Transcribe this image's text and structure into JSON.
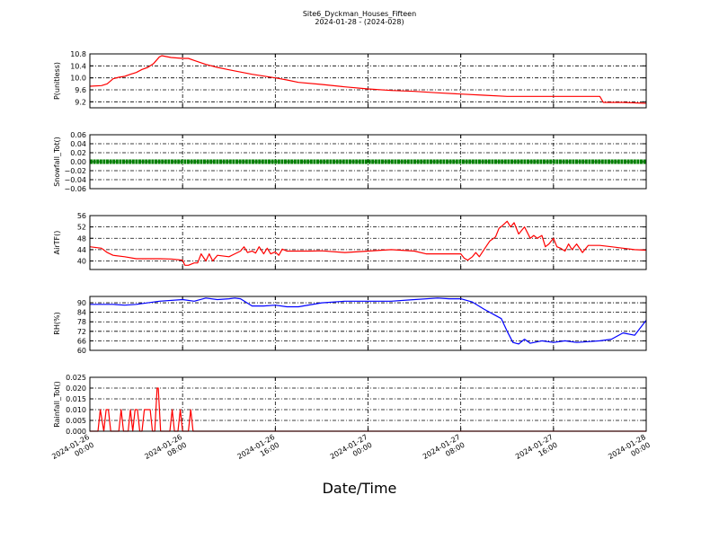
{
  "title": "Site6_Dyckman_Houses_Fifteen",
  "subtitle": "2024-01-28 - (2024-028)",
  "xlabel": "Date/Time",
  "chart_data": {
    "type": "line",
    "x_unit": "hours from 2024-01-26 00:00",
    "xlim": [
      0,
      48
    ],
    "xticks": [
      {
        "x": 0,
        "line1": "2024-01-26",
        "line2": "00:00"
      },
      {
        "x": 8,
        "line1": "2024-01-26",
        "line2": "08:00"
      },
      {
        "x": 16,
        "line1": "2024-01-26",
        "line2": "16:00"
      },
      {
        "x": 24,
        "line1": "2024-01-27",
        "line2": "00:00"
      },
      {
        "x": 32,
        "line1": "2024-01-27",
        "line2": "08:00"
      },
      {
        "x": 40,
        "line1": "2024-01-27",
        "line2": "16:00"
      },
      {
        "x": 48,
        "line1": "2024-01-28",
        "line2": "00:00"
      }
    ],
    "grid": true,
    "panels": [
      {
        "ylabel": "P(unitless)",
        "ylim": [
          9.0,
          10.8
        ],
        "yticks": [
          "9.2",
          "9.6",
          "10.0",
          "10.4",
          "10.8"
        ],
        "ytick_values": [
          9.2,
          9.6,
          10.0,
          10.4,
          10.8
        ],
        "color": "#ff0000",
        "style": "line",
        "x": [
          0,
          1,
          1.5,
          2,
          2.5,
          3,
          3.5,
          4,
          4.5,
          5,
          5.5,
          6,
          6.2,
          7,
          8,
          8.5,
          9,
          10,
          11,
          12,
          14,
          16,
          17,
          18,
          20,
          22,
          24,
          26,
          28,
          30,
          32,
          34,
          36,
          38,
          40,
          44,
          44.3,
          46,
          48
        ],
        "y": [
          9.72,
          9.74,
          9.8,
          9.97,
          10.02,
          10.05,
          10.12,
          10.18,
          10.28,
          10.35,
          10.48,
          10.7,
          10.74,
          10.68,
          10.65,
          10.65,
          10.58,
          10.45,
          10.35,
          10.27,
          10.12,
          10.0,
          9.93,
          9.85,
          9.78,
          9.7,
          9.63,
          9.58,
          9.55,
          9.5,
          9.46,
          9.42,
          9.38,
          9.38,
          9.38,
          9.38,
          9.18,
          9.18,
          9.15
        ]
      },
      {
        "ylabel": "Snowfall_Tot()",
        "ylim": [
          -0.06,
          0.06
        ],
        "yticks": [
          "−0.06",
          "−0.04",
          "−0.02",
          "0.00",
          "0.02",
          "0.04",
          "0.06"
        ],
        "ytick_values": [
          -0.06,
          -0.04,
          -0.02,
          0.0,
          0.02,
          0.04,
          0.06
        ],
        "color": "#008000",
        "style": "dots",
        "x": [
          0,
          48
        ],
        "y": [
          0.0,
          0.0
        ]
      },
      {
        "ylabel": "AirTF()",
        "ylim": [
          37,
          56
        ],
        "yticks": [
          "40",
          "44",
          "48",
          "52",
          "56"
        ],
        "ytick_values": [
          40,
          44,
          48,
          52,
          56
        ],
        "color": "#ff0000",
        "style": "line",
        "x": [
          0,
          1,
          1.5,
          2,
          3,
          4,
          5,
          6,
          7,
          8,
          8.2,
          8.5,
          9,
          9.3,
          9.6,
          10,
          10.3,
          10.6,
          11,
          12,
          12.5,
          13,
          13.3,
          13.6,
          14,
          14.3,
          14.6,
          15,
          15.3,
          15.6,
          16,
          16.3,
          16.6,
          17,
          18,
          19,
          20,
          22,
          24,
          26,
          28,
          29,
          30,
          32,
          32.3,
          32.6,
          33,
          33.3,
          33.6,
          34,
          34.5,
          35,
          35.3,
          35.6,
          36,
          36.3,
          36.6,
          37,
          37.5,
          38,
          38.3,
          38.6,
          39,
          39.3,
          39.6,
          40,
          40.3,
          40.6,
          41,
          41.3,
          41.6,
          42,
          42.5,
          43,
          44,
          45,
          46,
          47,
          48
        ],
        "y": [
          45,
          44.5,
          43,
          42,
          41.5,
          40.8,
          40.8,
          40.8,
          40.7,
          40.3,
          38.5,
          38.5,
          39.3,
          39.3,
          42.5,
          40,
          42.5,
          40,
          42,
          41.5,
          42.5,
          43.5,
          45,
          43,
          43.5,
          42.8,
          45,
          42.5,
          44.5,
          42.5,
          43.2,
          42,
          44.2,
          43.5,
          43.5,
          43.5,
          43.6,
          43,
          43.5,
          44,
          43.5,
          42.5,
          42.5,
          42.5,
          41,
          40.3,
          41.5,
          43,
          41.5,
          44,
          47,
          48.5,
          51.5,
          52.5,
          54,
          52,
          53.5,
          49.5,
          52,
          48,
          49,
          48,
          49,
          45,
          46,
          48,
          45,
          44.5,
          43.5,
          46,
          44,
          46,
          43,
          45.5,
          45.5,
          45,
          44.5,
          44,
          43.8
        ]
      },
      {
        "ylabel": "RH(%)",
        "ylim": [
          60,
          94
        ],
        "yticks": [
          "60",
          "66",
          "72",
          "78",
          "84",
          "90"
        ],
        "ytick_values": [
          60,
          66,
          72,
          78,
          84,
          90
        ],
        "color": "#0000ff",
        "style": "line",
        "x": [
          0,
          2,
          3,
          4,
          6,
          8,
          9,
          10,
          11,
          12,
          12.5,
          13,
          14,
          15,
          16,
          17,
          18,
          20,
          22,
          24,
          26,
          28,
          30,
          31,
          32,
          33,
          34,
          35,
          35.5,
          36,
          36.5,
          37,
          37.5,
          38,
          39,
          40,
          41,
          42,
          43,
          44,
          45,
          46,
          47,
          48
        ],
        "y": [
          89,
          89,
          88.5,
          89,
          91,
          92,
          91,
          93,
          92,
          92.5,
          93,
          92.5,
          88,
          88,
          88.5,
          87.5,
          87.5,
          90,
          91,
          91,
          91,
          92,
          93,
          92.5,
          92.5,
          90.5,
          86,
          82,
          80,
          72,
          65,
          64,
          67,
          64.5,
          66,
          65,
          66,
          65,
          65.5,
          66,
          67,
          71,
          69.5,
          79
        ]
      },
      {
        "ylabel": "Rainfall_Tot()",
        "ylim": [
          0,
          0.025
        ],
        "yticks": [
          "0.000",
          "0.005",
          "0.010",
          "0.015",
          "0.020",
          "0.025"
        ],
        "ytick_values": [
          0,
          0.005,
          0.01,
          0.015,
          0.02,
          0.025
        ],
        "color": "#ff0000",
        "style": "line",
        "x": [
          0,
          0.7,
          0.9,
          1.2,
          1.4,
          1.6,
          1.8,
          2,
          2.5,
          2.7,
          2.9,
          3.3,
          3.5,
          3.7,
          3.9,
          4.1,
          4.3,
          4.5,
          4.7,
          4.9,
          5.2,
          5.4,
          5.6,
          5.8,
          5.9,
          6.1,
          6.3,
          6.9,
          7.1,
          7.3,
          7.6,
          7.8,
          8.0,
          8.5,
          8.7,
          8.9,
          9.1,
          48
        ],
        "y": [
          0,
          0,
          0.01,
          0,
          0.01,
          0.01,
          0,
          0,
          0,
          0.01,
          0,
          0,
          0.01,
          0,
          0.01,
          0.01,
          0,
          0,
          0.01,
          0.01,
          0.01,
          0,
          0,
          0.02,
          0.02,
          0,
          0,
          0,
          0.01,
          0,
          0,
          0.01,
          0,
          0,
          0.01,
          0,
          0,
          0
        ]
      }
    ]
  }
}
